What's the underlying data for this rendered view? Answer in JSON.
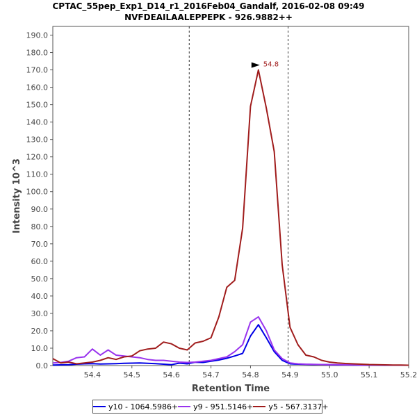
{
  "chart_data": {
    "type": "line",
    "title": "CPTAC_55pep_Exp1_D14_r1_2016Feb04_Gandalf, 2016-02-08 09:49",
    "subtitle": "NVFDEAILAALEPPEPK - 926.9882++",
    "xlabel": "Retention Time",
    "ylabel": "Intensity 10^3",
    "xlim": [
      54.3,
      55.2
    ],
    "ylim": [
      0,
      195
    ],
    "x_ticks": [
      54.4,
      54.5,
      54.6,
      54.7,
      54.8,
      54.9,
      55.0,
      55.1,
      55.2
    ],
    "x_tick_labels": [
      "54.4",
      "54.5",
      "54.6",
      "54.7",
      "54.8",
      "54.9",
      "55.0",
      "55.1",
      "55.2"
    ],
    "y_ticks": [
      0,
      10,
      20,
      30,
      40,
      50,
      60,
      70,
      80,
      90,
      100,
      110,
      120,
      130,
      140,
      150,
      160,
      170,
      180,
      190
    ],
    "y_tick_labels": [
      "0.0",
      "10.0",
      "20.0",
      "30.0",
      "40.0",
      "50.0",
      "60.0",
      "70.0",
      "80.0",
      "90.0",
      "100.0",
      "110.0",
      "120.0",
      "130.0",
      "140.0",
      "150.0",
      "160.0",
      "170.0",
      "180.0",
      "190.0"
    ],
    "vlines": [
      54.645,
      54.895
    ],
    "peak_annotation": {
      "x": 54.827,
      "y": 170,
      "label": "54.8"
    },
    "x": [
      54.3,
      54.32,
      54.34,
      54.36,
      54.38,
      54.4,
      54.42,
      54.44,
      54.46,
      54.48,
      54.5,
      54.52,
      54.54,
      54.56,
      54.58,
      54.6,
      54.62,
      54.64,
      54.66,
      54.68,
      54.7,
      54.72,
      54.74,
      54.76,
      54.78,
      54.8,
      54.82,
      54.84,
      54.86,
      54.88,
      54.9,
      54.92,
      54.94,
      54.96,
      54.98,
      55.0,
      55.02,
      55.04,
      55.06,
      55.08,
      55.1,
      55.12,
      55.14,
      55.16,
      55.18,
      55.2
    ],
    "series": [
      {
        "name": "y10 - 1064.5986+",
        "color": "#0000e6",
        "values": [
          0.3,
          0.4,
          0.5,
          0.8,
          1.0,
          1.1,
          0.9,
          1.0,
          1.1,
          1.3,
          1.4,
          1.5,
          1.3,
          1.1,
          0.8,
          0.5,
          1.4,
          1.0,
          1.9,
          1.8,
          2.5,
          3.2,
          4.2,
          5.5,
          7.0,
          17.0,
          23.5,
          16.0,
          8.0,
          3.0,
          1.0,
          0.8,
          0.7,
          0.6,
          0.6,
          0.5,
          0.4,
          0.4,
          0.3,
          0.3,
          0.3,
          0.3,
          0.2,
          0.2,
          0.2,
          0.2
        ]
      },
      {
        "name": "y9 - 951.5146+",
        "color": "#9933ee",
        "values": [
          1.5,
          1.8,
          2.5,
          4.5,
          5.0,
          9.5,
          6.0,
          9.0,
          6.0,
          5.5,
          5.0,
          4.5,
          3.5,
          3.0,
          3.0,
          2.5,
          2.0,
          1.8,
          2.0,
          2.5,
          3.0,
          4.0,
          5.0,
          8.0,
          12.0,
          25.0,
          28.0,
          20.0,
          9.0,
          4.0,
          1.5,
          1.0,
          0.8,
          0.7,
          0.6,
          0.5,
          0.5,
          0.4,
          0.4,
          0.3,
          0.3,
          0.3,
          0.3,
          0.2,
          0.2,
          0.2
        ]
      },
      {
        "name": "y5 - 567.3137+",
        "color": "#a01c1c",
        "values": [
          4.0,
          1.5,
          2.0,
          1.0,
          1.5,
          2.0,
          3.0,
          4.5,
          3.5,
          5.0,
          5.5,
          8.5,
          9.5,
          10.0,
          13.5,
          12.5,
          10.0,
          9.0,
          13.0,
          14.0,
          16.0,
          28.0,
          45.0,
          49.0,
          79.0,
          149.0,
          170.0,
          148.0,
          123.0,
          58.0,
          22.0,
          12.0,
          6.0,
          5.0,
          3.0,
          2.0,
          1.5,
          1.2,
          1.0,
          0.8,
          0.6,
          0.5,
          0.4,
          0.3,
          0.3,
          0.2
        ]
      }
    ]
  }
}
